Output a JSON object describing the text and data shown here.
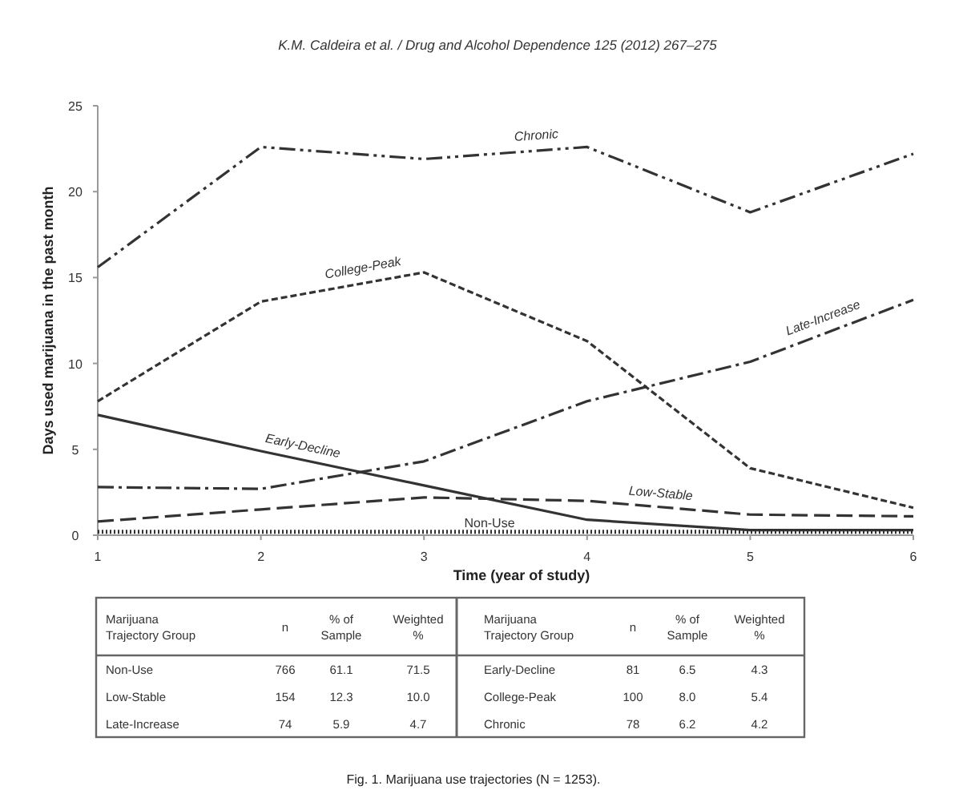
{
  "chart_data": {
    "type": "line",
    "xlabel": "Time (year of study)",
    "ylabel": "Days used marijuana in the past month",
    "x": [
      1,
      2,
      3,
      4,
      5,
      6
    ],
    "xlim": [
      1,
      6
    ],
    "xticks": [
      1,
      2,
      3,
      4,
      5,
      6
    ],
    "ylim": [
      0,
      25
    ],
    "yticks": [
      0,
      5,
      10,
      15,
      20,
      25
    ],
    "grid": false,
    "marker": "none",
    "series": [
      {
        "name": "Chronic",
        "color": "#333333",
        "line_style": "dashdotdot",
        "values": [
          15.6,
          22.6,
          21.9,
          22.6,
          18.8,
          22.2
        ]
      },
      {
        "name": "College-Peak",
        "color": "#333333",
        "line_style": "dashed",
        "values": [
          7.8,
          13.6,
          15.3,
          11.3,
          3.9,
          1.6
        ]
      },
      {
        "name": "Late-Increase",
        "color": "#333333",
        "line_style": "dashdot",
        "values": [
          2.8,
          2.7,
          4.3,
          7.8,
          10.1,
          13.7
        ]
      },
      {
        "name": "Early-Decline",
        "color": "#333333",
        "line_style": "solid",
        "values": [
          7.0,
          4.9,
          2.9,
          0.9,
          0.3,
          0.3
        ]
      },
      {
        "name": "Low-Stable",
        "color": "#333333",
        "line_style": "longdash",
        "values": [
          0.8,
          1.5,
          2.2,
          2.0,
          1.2,
          1.1
        ]
      },
      {
        "name": "Non-Use",
        "color": "#333333",
        "line_style": "dotted",
        "values": [
          0.2,
          0.2,
          0.2,
          0.2,
          0.2,
          0.2
        ]
      }
    ],
    "annotations": [
      "K.M. Caldeira et al. / Drug and Alcohol Dependence 125 (2012) 267–275",
      "Fig. 1. Marijuana use trajectories (N = 1253).",
      "Marijuana\nTrajectory Group",
      "n",
      "% of\nSample",
      "Weighted\n%",
      "Marijuana\nTrajectory Group",
      "n",
      "% of\nSample",
      "Weighted\n%",
      "Non-Use",
      "766",
      "61.1",
      "71.5",
      "Early-Decline",
      "81",
      "6.5",
      "4.3",
      "Low-Stable",
      "154",
      "12.3",
      "10.0",
      "College-Peak",
      "100",
      "8.0",
      "5.4",
      "Late-Increase",
      "74",
      "5.9",
      "4.7",
      "Chronic",
      "78",
      "6.2",
      "4.2"
    ]
  }
}
